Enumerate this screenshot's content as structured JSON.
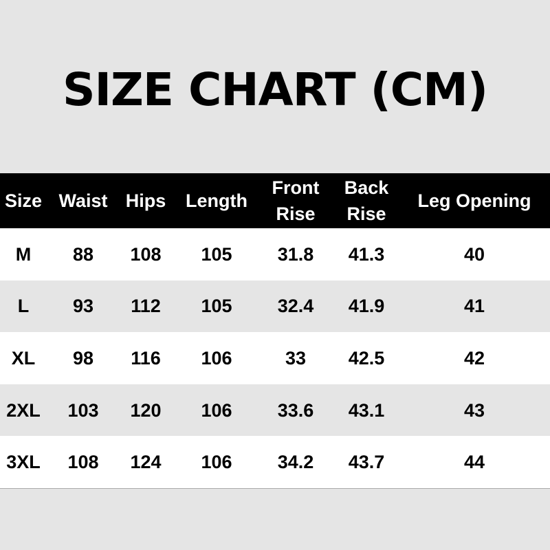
{
  "title": "SIZE CHART (CM)",
  "columns": [
    "Size",
    "Waist",
    "Hips",
    "Length",
    "Front\nRise",
    "Back\nRise",
    "Leg Opening"
  ],
  "rows": [
    [
      "M",
      "88",
      "108",
      "105",
      "31.8",
      "41.3",
      "40"
    ],
    [
      "L",
      "93",
      "112",
      "105",
      "32.4",
      "41.9",
      "41"
    ],
    [
      "XL",
      "98",
      "116",
      "106",
      "33",
      "42.5",
      "42"
    ],
    [
      "2XL",
      "103",
      "120",
      "106",
      "33.6",
      "43.1",
      "43"
    ],
    [
      "3XL",
      "108",
      "124",
      "106",
      "34.2",
      "43.7",
      "44"
    ]
  ],
  "colors": {
    "header_bg": "#000000",
    "header_text": "#ffffff",
    "row_alt": "#e5e5e5",
    "row": "#ffffff"
  }
}
